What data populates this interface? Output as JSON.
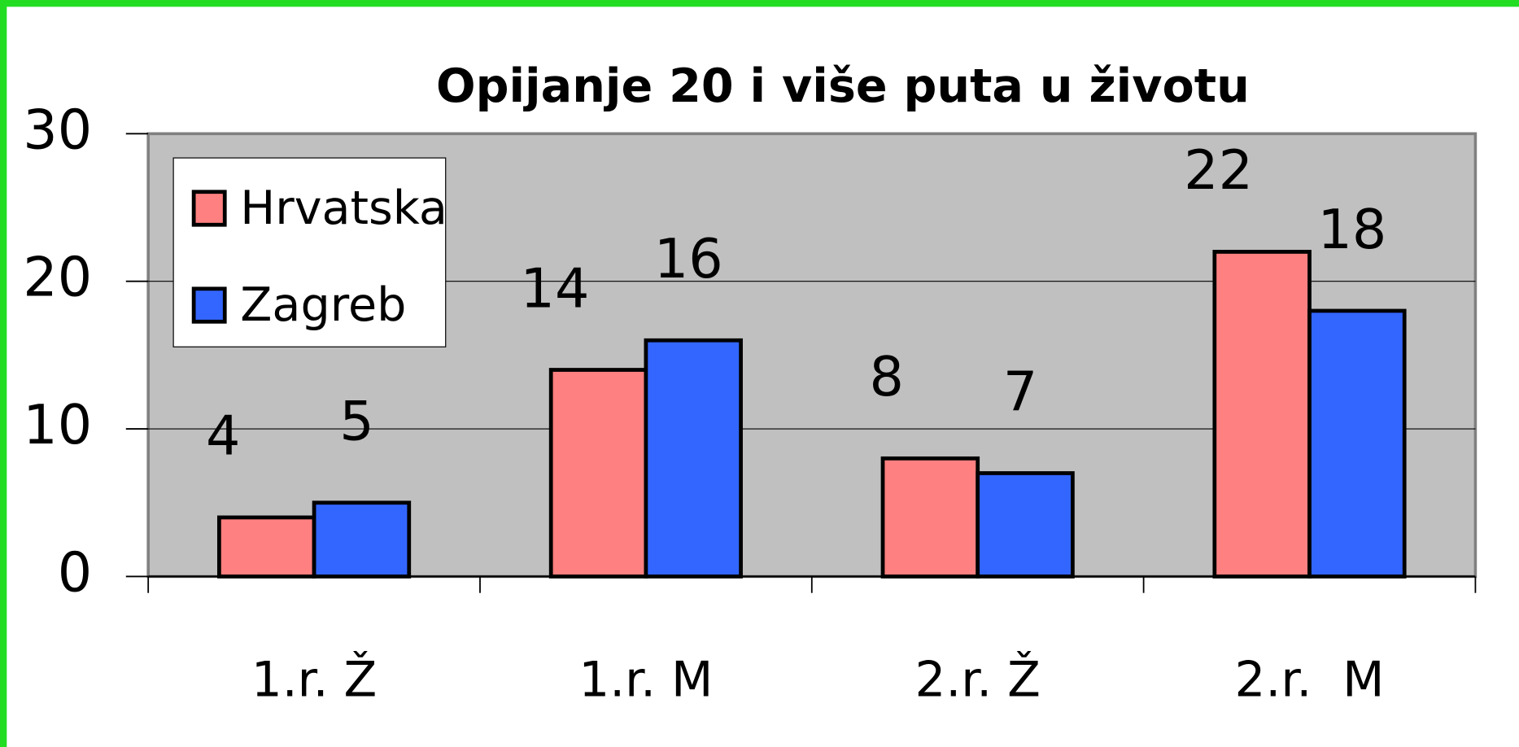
{
  "chart_data": {
    "type": "bar",
    "title": "Opijanje 20 i više puta u životu",
    "categories": [
      "1.r. Ž",
      "1.r. M",
      "2.r. Ž",
      "2.r.  M"
    ],
    "series": [
      {
        "name": "Hrvatska",
        "color": "#ff8080",
        "values": [
          4,
          14,
          8,
          22
        ]
      },
      {
        "name": "Zagreb",
        "color": "#3366ff",
        "values": [
          5,
          16,
          7,
          18
        ]
      }
    ],
    "ylim": [
      0,
      30
    ],
    "yticks": [
      0,
      10,
      20,
      30
    ],
    "grid": true,
    "legend": "upper left"
  }
}
